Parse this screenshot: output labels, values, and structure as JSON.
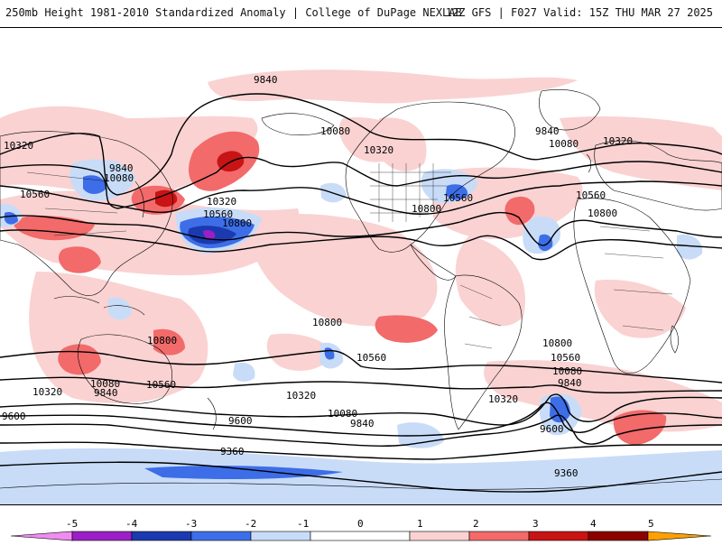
{
  "header": {
    "title": "250mb Height 1981-2010 Standardized Anomaly | College of DuPage NEXLAB",
    "run_info": "12Z GFS | F027 Valid: 15Z THU MAR 27 2025"
  },
  "contour_labels": [
    "9840",
    "10080",
    "10320",
    "10560",
    "10800",
    "9600",
    "9360"
  ],
  "colorbar": {
    "ticks": [
      "-5",
      "-4",
      "-3",
      "-2",
      "-1",
      "0",
      "1",
      "2",
      "3",
      "4",
      "5"
    ],
    "colors": {
      "neg5": "#f08cf0",
      "neg4": "#9b1fc6",
      "neg3": "#1c3ab0",
      "neg2": "#3d6ee8",
      "neg1": "#c8dcf8",
      "zero": "#ffffff",
      "pos1": "#fad2d2",
      "pos2": "#f26a6a",
      "pos3": "#c81414",
      "pos4": "#8c0000",
      "pos5": "#ffa000"
    }
  },
  "colors": {
    "land_border": "#000000",
    "contour": "#000000"
  }
}
